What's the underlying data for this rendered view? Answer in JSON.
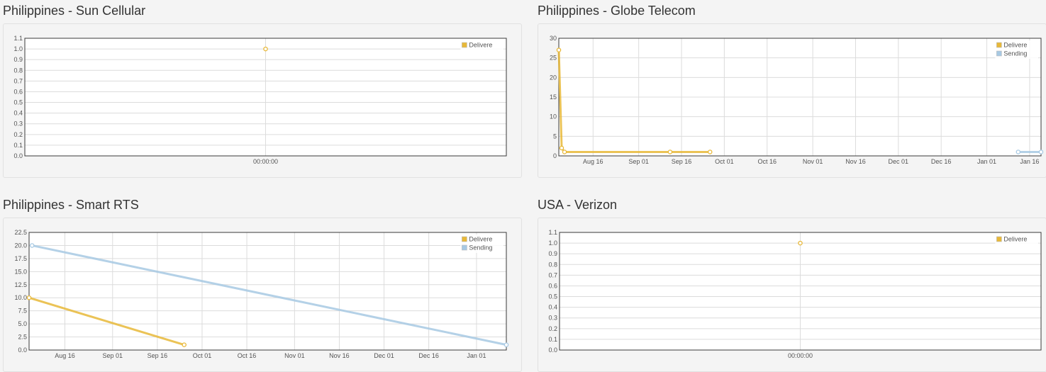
{
  "colors": {
    "delivered": "#e8b838",
    "sending": "#a7c9e3",
    "grid": "#dcdcdc",
    "frame": "#3a3a3a"
  },
  "panels": [
    {
      "title": "Philippines - Sun Cellular",
      "chart_data": {
        "type": "line",
        "xaxis": "time-of-day",
        "xticks": [
          "00:00:00"
        ],
        "ylim": [
          0,
          1.1
        ],
        "yticks": [
          "0.0",
          "0.1",
          "0.2",
          "0.3",
          "0.4",
          "0.5",
          "0.6",
          "0.7",
          "0.8",
          "0.9",
          "1.0",
          "1.1"
        ],
        "grid": true,
        "legend_position": "top-right",
        "series": [
          {
            "name": "Delivere",
            "color_key": "delivered",
            "points": [
              {
                "x": "00:00:00",
                "y": 1.0
              }
            ]
          }
        ]
      }
    },
    {
      "title": "Philippines - Globe Telecom",
      "chart_data": {
        "type": "line",
        "xaxis": "date",
        "xlim": [
          "2013-08-04",
          "2014-01-20"
        ],
        "xticks": [
          {
            "label": "Aug 16",
            "date": "2013-08-16"
          },
          {
            "label": "Sep 01",
            "date": "2013-09-01"
          },
          {
            "label": "Sep 16",
            "date": "2013-09-16"
          },
          {
            "label": "Oct 01",
            "date": "2013-10-01"
          },
          {
            "label": "Oct 16",
            "date": "2013-10-16"
          },
          {
            "label": "Nov 01",
            "date": "2013-11-01"
          },
          {
            "label": "Nov 16",
            "date": "2013-11-16"
          },
          {
            "label": "Dec 01",
            "date": "2013-12-01"
          },
          {
            "label": "Dec 16",
            "date": "2013-12-16"
          },
          {
            "label": "Jan 01",
            "date": "2014-01-01"
          },
          {
            "label": "Jan 16",
            "date": "2014-01-16"
          }
        ],
        "ylim": [
          0,
          30
        ],
        "yticks": [
          "0",
          "5",
          "10",
          "15",
          "20",
          "25",
          "30"
        ],
        "grid": true,
        "legend_position": "top-right",
        "series": [
          {
            "name": "Delivere",
            "color_key": "delivered",
            "points": [
              {
                "x": "2013-08-04",
                "y": 27
              },
              {
                "x": "2013-08-05",
                "y": 2
              },
              {
                "x": "2013-08-06",
                "y": 1
              },
              {
                "x": "2013-09-12",
                "y": 1
              },
              {
                "x": "2013-09-26",
                "y": 1
              }
            ]
          },
          {
            "name": "Sending",
            "color_key": "sending",
            "points": [
              {
                "x": "2014-01-12",
                "y": 1
              },
              {
                "x": "2014-01-20",
                "y": 1
              }
            ]
          }
        ]
      }
    },
    {
      "title": "Philippines - Smart RTS",
      "chart_data": {
        "type": "line",
        "xaxis": "date",
        "xlim": [
          "2013-08-04",
          "2014-01-11"
        ],
        "xticks": [
          {
            "label": "Aug 16",
            "date": "2013-08-16"
          },
          {
            "label": "Sep 01",
            "date": "2013-09-01"
          },
          {
            "label": "Sep 16",
            "date": "2013-09-16"
          },
          {
            "label": "Oct 01",
            "date": "2013-10-01"
          },
          {
            "label": "Oct 16",
            "date": "2013-10-16"
          },
          {
            "label": "Nov 01",
            "date": "2013-11-01"
          },
          {
            "label": "Nov 16",
            "date": "2013-11-16"
          },
          {
            "label": "Dec 01",
            "date": "2013-12-01"
          },
          {
            "label": "Dec 16",
            "date": "2013-12-16"
          },
          {
            "label": "Jan 01",
            "date": "2014-01-01"
          }
        ],
        "ylim": [
          0,
          22.5
        ],
        "yticks": [
          "0.0",
          "2.5",
          "5.0",
          "7.5",
          "10.0",
          "12.5",
          "15.0",
          "17.5",
          "20.0",
          "22.5"
        ],
        "grid": true,
        "legend_position": "top-right",
        "series": [
          {
            "name": "Delivere",
            "color_key": "delivered",
            "points": [
              {
                "x": "2013-08-04",
                "y": 10
              },
              {
                "x": "2013-09-25",
                "y": 1
              }
            ]
          },
          {
            "name": "Sending",
            "color_key": "sending",
            "points": [
              {
                "x": "2013-08-05",
                "y": 20
              },
              {
                "x": "2014-01-11",
                "y": 1
              }
            ]
          }
        ]
      }
    },
    {
      "title": "USA - Verizon",
      "chart_data": {
        "type": "line",
        "xaxis": "time-of-day",
        "xticks": [
          "00:00:00"
        ],
        "ylim": [
          0,
          1.1
        ],
        "yticks": [
          "0.0",
          "0.1",
          "0.2",
          "0.3",
          "0.4",
          "0.5",
          "0.6",
          "0.7",
          "0.8",
          "0.9",
          "1.0",
          "1.1"
        ],
        "grid": true,
        "legend_position": "top-right",
        "series": [
          {
            "name": "Delivere",
            "color_key": "delivered",
            "points": [
              {
                "x": "00:00:00",
                "y": 1.0
              }
            ]
          }
        ]
      }
    }
  ]
}
